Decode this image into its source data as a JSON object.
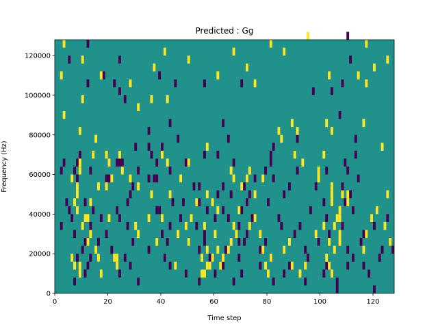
{
  "chart_data": {
    "type": "heatmap",
    "title": "Predicted : Gg",
    "xlabel": "Time step",
    "ylabel": "Frequency (Hz)",
    "xlim": [
      0,
      128
    ],
    "ylim": [
      0,
      128000
    ],
    "x_ticks": [
      0,
      20,
      40,
      60,
      80,
      100,
      120
    ],
    "y_ticks": [
      0,
      20000,
      40000,
      60000,
      80000,
      100000,
      120000
    ],
    "x_tick_labels": [
      "0",
      "20",
      "40",
      "60",
      "80",
      "100",
      "120"
    ],
    "y_tick_labels": [
      "0",
      "20000",
      "40000",
      "60000",
      "80000",
      "100000",
      "120000"
    ],
    "colormap": "viridis",
    "background_value": "mid",
    "colors": {
      "low": "#440154",
      "mid": "#21918c",
      "high": "#fde725"
    },
    "grid": false,
    "legend": "none",
    "cell_height_hz": 4000,
    "cells_low": [
      [
        12,
        124000
      ],
      [
        5,
        116000
      ],
      [
        24,
        116000
      ],
      [
        18,
        108000
      ],
      [
        39,
        108000
      ],
      [
        12,
        104000
      ],
      [
        22,
        104000
      ],
      [
        56,
        104000
      ],
      [
        70,
        104000
      ],
      [
        24,
        100000
      ],
      [
        97,
        100000
      ],
      [
        104,
        100000
      ],
      [
        26,
        96000
      ],
      [
        107,
        88000
      ],
      [
        63,
        84000
      ],
      [
        35,
        80000
      ],
      [
        43,
        84000
      ],
      [
        65,
        76000
      ],
      [
        35,
        72000
      ],
      [
        9,
        68000
      ],
      [
        36,
        68000
      ],
      [
        56,
        68000
      ],
      [
        61,
        68000
      ],
      [
        81,
        68000
      ],
      [
        113,
        68000
      ],
      [
        3,
        64000
      ],
      [
        8,
        64000
      ],
      [
        23,
        64000
      ],
      [
        24,
        64000
      ],
      [
        25,
        64000
      ],
      [
        49,
        64000
      ],
      [
        67,
        64000
      ],
      [
        81,
        64000
      ],
      [
        109,
        64000
      ],
      [
        2,
        60000
      ],
      [
        7,
        60000
      ],
      [
        13,
        60000
      ],
      [
        31,
        60000
      ],
      [
        43,
        60000
      ],
      [
        79,
        60000
      ],
      [
        91,
        60000
      ],
      [
        102,
        60000
      ],
      [
        110,
        60000
      ],
      [
        38,
        56000
      ],
      [
        37,
        56000
      ],
      [
        8,
        56000
      ],
      [
        19,
        56000
      ],
      [
        20,
        56000
      ],
      [
        35,
        56000
      ],
      [
        75,
        56000
      ],
      [
        82,
        56000
      ],
      [
        29,
        52000
      ],
      [
        52,
        52000
      ],
      [
        54,
        52000
      ],
      [
        63,
        52000
      ],
      [
        71,
        52000
      ],
      [
        88,
        52000
      ],
      [
        98,
        52000
      ],
      [
        108,
        52000
      ],
      [
        28,
        48000
      ],
      [
        61,
        48000
      ],
      [
        66,
        48000
      ],
      [
        73,
        48000
      ],
      [
        86,
        48000
      ],
      [
        111,
        48000
      ],
      [
        4,
        44000
      ],
      [
        11,
        44000
      ],
      [
        27,
        44000
      ],
      [
        48,
        44000
      ],
      [
        54,
        44000
      ],
      [
        72,
        44000
      ],
      [
        80,
        44000
      ],
      [
        101,
        44000
      ],
      [
        109,
        44000
      ],
      [
        5,
        40000
      ],
      [
        14,
        40000
      ],
      [
        23,
        40000
      ],
      [
        38,
        40000
      ],
      [
        39,
        40000
      ],
      [
        57,
        40000
      ],
      [
        63,
        40000
      ],
      [
        70,
        40000
      ],
      [
        96,
        40000
      ],
      [
        112,
        40000
      ],
      [
        6,
        36000
      ],
      [
        17,
        36000
      ],
      [
        24,
        36000
      ],
      [
        47,
        36000
      ],
      [
        60,
        36000
      ],
      [
        65,
        36000
      ],
      [
        74,
        36000
      ],
      [
        84,
        36000
      ],
      [
        102,
        36000
      ],
      [
        125,
        36000
      ],
      [
        2,
        32000
      ],
      [
        13,
        32000
      ],
      [
        27,
        32000
      ],
      [
        43,
        32000
      ],
      [
        53,
        32000
      ],
      [
        69,
        32000
      ],
      [
        85,
        32000
      ],
      [
        92,
        32000
      ],
      [
        108,
        32000
      ],
      [
        120,
        32000
      ],
      [
        7,
        28000
      ],
      [
        19,
        28000
      ],
      [
        40,
        28000
      ],
      [
        56,
        28000
      ],
      [
        72,
        28000
      ],
      [
        90,
        28000
      ],
      [
        103,
        28000
      ],
      [
        116,
        28000
      ],
      [
        11,
        24000
      ],
      [
        16,
        24000
      ],
      [
        29,
        24000
      ],
      [
        42,
        24000
      ],
      [
        56,
        24000
      ],
      [
        69,
        24000
      ],
      [
        71,
        24000
      ],
      [
        79,
        24000
      ],
      [
        99,
        24000
      ],
      [
        115,
        24000
      ],
      [
        10,
        20000
      ],
      [
        21,
        20000
      ],
      [
        35,
        20000
      ],
      [
        54,
        20000
      ],
      [
        64,
        20000
      ],
      [
        77,
        20000
      ],
      [
        94,
        20000
      ],
      [
        110,
        20000
      ],
      [
        123,
        20000
      ],
      [
        127,
        20000
      ],
      [
        8,
        16000
      ],
      [
        13,
        16000
      ],
      [
        26,
        16000
      ],
      [
        41,
        16000
      ],
      [
        58,
        16000
      ],
      [
        69,
        16000
      ],
      [
        81,
        16000
      ],
      [
        95,
        16000
      ],
      [
        112,
        16000
      ],
      [
        122,
        16000
      ],
      [
        12,
        12000
      ],
      [
        28,
        12000
      ],
      [
        43,
        12000
      ],
      [
        63,
        12000
      ],
      [
        77,
        12000
      ],
      [
        88,
        12000
      ],
      [
        102,
        12000
      ],
      [
        110,
        12000
      ],
      [
        116,
        12000
      ],
      [
        11,
        8000
      ],
      [
        24,
        8000
      ],
      [
        49,
        8000
      ],
      [
        60,
        8000
      ],
      [
        70,
        8000
      ],
      [
        86,
        8000
      ],
      [
        101,
        8000
      ],
      [
        118,
        8000
      ],
      [
        106,
        4000
      ],
      [
        7,
        4000
      ],
      [
        31,
        4000
      ],
      [
        54,
        4000
      ],
      [
        67,
        4000
      ],
      [
        82,
        4000
      ],
      [
        94,
        4000
      ],
      [
        106,
        0
      ],
      [
        120,
        0
      ],
      [
        114,
        56000
      ],
      [
        38,
        64000
      ],
      [
        40,
        72000
      ],
      [
        46,
        76000
      ],
      [
        82,
        72000
      ],
      [
        91,
        76000
      ],
      [
        113,
        76000
      ],
      [
        108,
        104000
      ],
      [
        111,
        116000
      ],
      [
        110,
        128000
      ],
      [
        30,
        72000
      ],
      [
        44,
        44000
      ],
      [
        45,
        104000
      ]
    ],
    "cells_high": [
      [
        3,
        124000
      ],
      [
        10,
        116000
      ],
      [
        37,
        112000
      ],
      [
        41,
        120000
      ],
      [
        72,
        112000
      ],
      [
        2,
        108000
      ],
      [
        17,
        108000
      ],
      [
        28,
        104000
      ],
      [
        36,
        96000
      ],
      [
        31,
        92000
      ],
      [
        10,
        96000
      ],
      [
        3,
        88000
      ],
      [
        42,
        96000
      ],
      [
        50,
        116000
      ],
      [
        61,
        108000
      ],
      [
        67,
        120000
      ],
      [
        75,
        104000
      ],
      [
        81,
        124000
      ],
      [
        86,
        120000
      ],
      [
        103,
        108000
      ],
      [
        114,
        108000
      ],
      [
        117,
        104000
      ],
      [
        120,
        112000
      ],
      [
        125,
        116000
      ],
      [
        117,
        124000
      ],
      [
        95,
        128000
      ],
      [
        89,
        84000
      ],
      [
        102,
        84000
      ],
      [
        104,
        80000
      ],
      [
        116,
        84000
      ],
      [
        9,
        80000
      ],
      [
        15,
        76000
      ],
      [
        14,
        68000
      ],
      [
        19,
        68000
      ],
      [
        20,
        64000
      ],
      [
        28,
        56000
      ],
      [
        9,
        64000
      ],
      [
        9,
        60000
      ],
      [
        8,
        52000
      ],
      [
        16,
        52000
      ],
      [
        19,
        52000
      ],
      [
        21,
        56000
      ],
      [
        24,
        68000
      ],
      [
        25,
        60000
      ],
      [
        31,
        52000
      ],
      [
        40,
        68000
      ],
      [
        42,
        64000
      ],
      [
        50,
        64000
      ],
      [
        57,
        72000
      ],
      [
        66,
        60000
      ],
      [
        67,
        56000
      ],
      [
        70,
        52000
      ],
      [
        72,
        56000
      ],
      [
        73,
        60000
      ],
      [
        78,
        56000
      ],
      [
        90,
        68000
      ],
      [
        93,
        64000
      ],
      [
        99,
        60000
      ],
      [
        99,
        56000
      ],
      [
        104,
        52000
      ],
      [
        104,
        48000
      ],
      [
        104,
        44000
      ],
      [
        107,
        40000
      ],
      [
        108,
        48000
      ],
      [
        107,
        36000
      ],
      [
        105,
        32000
      ],
      [
        103,
        24000
      ],
      [
        105,
        20000
      ],
      [
        107,
        24000
      ],
      [
        107,
        28000
      ],
      [
        106,
        36000
      ],
      [
        110,
        44000
      ],
      [
        110,
        48000
      ],
      [
        7,
        44000
      ],
      [
        8,
        40000
      ],
      [
        8,
        48000
      ],
      [
        10,
        32000
      ],
      [
        11,
        36000
      ],
      [
        12,
        24000
      ],
      [
        13,
        28000
      ],
      [
        15,
        20000
      ],
      [
        16,
        16000
      ],
      [
        9,
        12000
      ],
      [
        7,
        12000
      ],
      [
        9,
        8000
      ],
      [
        6,
        16000
      ],
      [
        17,
        8000
      ],
      [
        22,
        16000
      ],
      [
        23,
        12000
      ],
      [
        23,
        16000
      ],
      [
        30,
        32000
      ],
      [
        31,
        28000
      ],
      [
        35,
        36000
      ],
      [
        38,
        24000
      ],
      [
        46,
        28000
      ],
      [
        45,
        12000
      ],
      [
        50,
        24000
      ],
      [
        51,
        36000
      ],
      [
        56,
        32000
      ],
      [
        57,
        20000
      ],
      [
        57,
        12000
      ],
      [
        58,
        12000
      ],
      [
        59,
        16000
      ],
      [
        60,
        28000
      ],
      [
        61,
        20000
      ],
      [
        62,
        12000
      ],
      [
        63,
        16000
      ],
      [
        65,
        20000
      ],
      [
        66,
        24000
      ],
      [
        67,
        32000
      ],
      [
        68,
        28000
      ],
      [
        69,
        40000
      ],
      [
        73,
        32000
      ],
      [
        75,
        48000
      ],
      [
        75,
        36000
      ],
      [
        77,
        28000
      ],
      [
        78,
        20000
      ],
      [
        79,
        12000
      ],
      [
        80,
        8000
      ],
      [
        81,
        16000
      ],
      [
        86,
        20000
      ],
      [
        88,
        24000
      ],
      [
        89,
        12000
      ],
      [
        92,
        8000
      ],
      [
        94,
        12000
      ],
      [
        98,
        28000
      ],
      [
        101,
        32000
      ],
      [
        102,
        16000
      ],
      [
        103,
        12000
      ],
      [
        104,
        8000
      ],
      [
        116,
        20000
      ],
      [
        117,
        28000
      ],
      [
        119,
        36000
      ],
      [
        121,
        40000
      ],
      [
        125,
        48000
      ],
      [
        124,
        32000
      ],
      [
        126,
        24000
      ],
      [
        57,
        48000
      ],
      [
        59,
        44000
      ],
      [
        61,
        40000
      ],
      [
        47,
        56000
      ],
      [
        43,
        48000
      ],
      [
        53,
        44000
      ],
      [
        84,
        80000
      ],
      [
        85,
        76000
      ],
      [
        91,
        80000
      ],
      [
        101,
        68000
      ],
      [
        123,
        72000
      ],
      [
        6,
        56000
      ],
      [
        49,
        32000
      ],
      [
        55,
        8000
      ],
      [
        55,
        16000
      ],
      [
        56,
        8000
      ],
      [
        20,
        36000
      ],
      [
        12,
        36000
      ],
      [
        13,
        44000
      ],
      [
        40,
        36000
      ],
      [
        36,
        48000
      ]
    ]
  }
}
